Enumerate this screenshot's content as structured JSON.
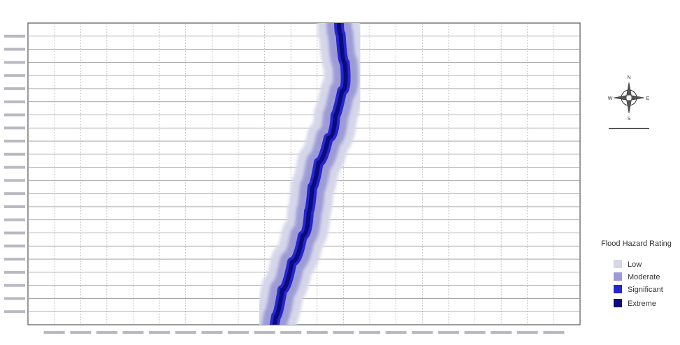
{
  "legend": {
    "title": "Flood Hazard Rating",
    "items": [
      {
        "label": "Low",
        "color": "#d6d6ea"
      },
      {
        "label": "Moderate",
        "color": "#9d9bd6"
      },
      {
        "label": "Significant",
        "color": "#2626cf"
      },
      {
        "label": "Extreme",
        "color": "#0b0b7e"
      }
    ]
  },
  "compass": {
    "north": "N",
    "south": "S",
    "east": "E",
    "west": "W"
  }
}
